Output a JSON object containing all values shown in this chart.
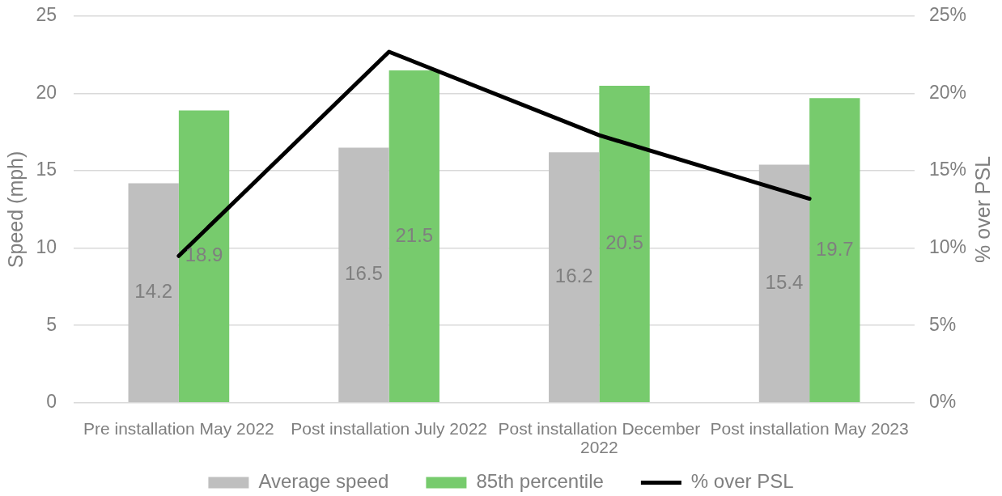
{
  "chart_data": {
    "type": "bar",
    "categories": [
      "Pre installation May 2022",
      "Post installation July 2022",
      "Post installation December 2022",
      "Post installation May 2023"
    ],
    "series": [
      {
        "name": "Average speed",
        "color": "#bfbfbf",
        "values": [
          14.2,
          16.5,
          16.2,
          15.4
        ],
        "value_labels": [
          "14.2",
          "16.5",
          "16.2",
          "15.4"
        ]
      },
      {
        "name": "85th percentile",
        "color": "#77cb6d",
        "values": [
          18.9,
          21.5,
          20.5,
          19.7
        ],
        "value_labels": [
          "18.9",
          "21.5",
          "20.5",
          "19.7"
        ]
      },
      {
        "name": "% over PSL",
        "type": "line",
        "axis": "y2",
        "color": "#000000",
        "values": [
          9.5,
          22.7,
          17.3,
          13.2
        ]
      }
    ],
    "ylabel": "Speed (mph)",
    "y2label": "% over PSL",
    "ylim": [
      0,
      25
    ],
    "yticks": [
      0,
      5,
      10,
      15,
      20,
      25
    ],
    "y2lim": [
      0,
      25
    ],
    "y2ticks": [
      {
        "value": 0,
        "label": "0%"
      },
      {
        "value": 5,
        "label": "5%"
      },
      {
        "value": 10,
        "label": "10%"
      },
      {
        "value": 15,
        "label": "15%"
      },
      {
        "value": 20,
        "label": "20%"
      },
      {
        "value": 25,
        "label": "25%"
      }
    ],
    "grid": "y",
    "legend": "bottom"
  }
}
